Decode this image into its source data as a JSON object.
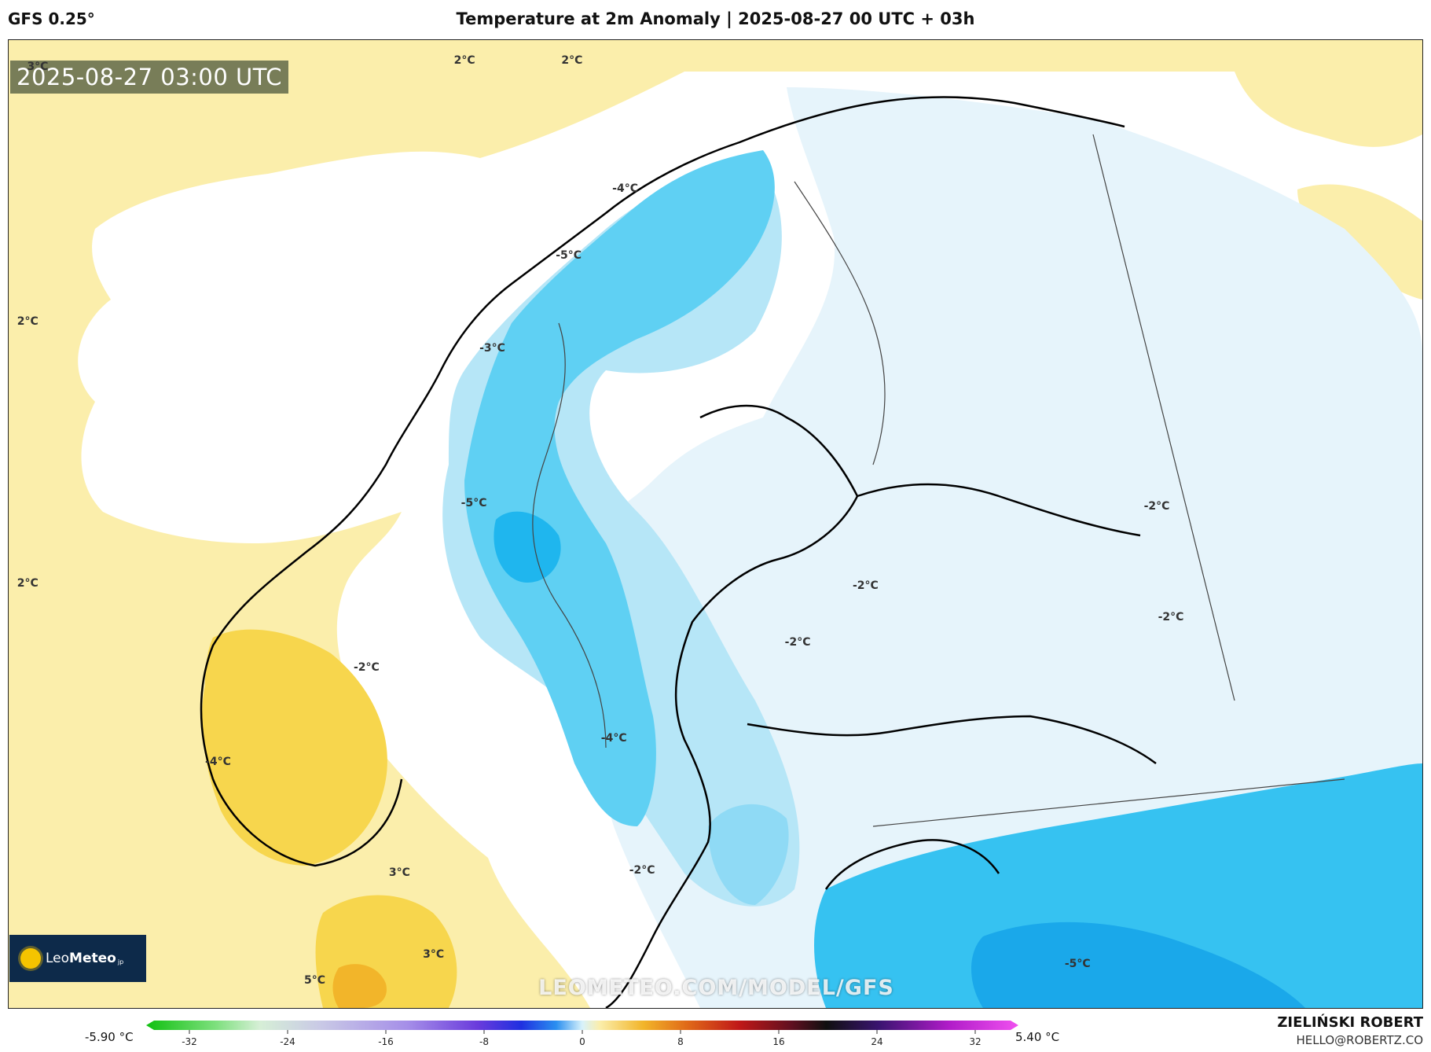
{
  "header": {
    "model": "GFS 0.25°",
    "title": "Temperature at 2m Anomaly | 2025-08-27 00 UTC + 03h"
  },
  "map": {
    "timestamp": "2025-08-27 03:00 UTC",
    "watermark": "LEOMETEO.COM/MODEL/GFS",
    "logo": {
      "leo": "Leo",
      "meteo": "Meteo",
      "suffix": "jp"
    },
    "contour_labels": [
      {
        "text": "3°C",
        "x": 1.3,
        "y": 2.1
      },
      {
        "text": "2°C",
        "x": 31.5,
        "y": 1.5
      },
      {
        "text": "2°C",
        "x": 39.1,
        "y": 1.5
      },
      {
        "text": "2°C",
        "x": 0.6,
        "y": 28.4
      },
      {
        "text": "2°C",
        "x": 0.6,
        "y": 55.5
      },
      {
        "text": "-4°C",
        "x": 42.7,
        "y": 14.7
      },
      {
        "text": "-5°C",
        "x": 38.7,
        "y": 21.6
      },
      {
        "text": "-3°C",
        "x": 33.3,
        "y": 31.2
      },
      {
        "text": "-5°C",
        "x": 32.0,
        "y": 47.2
      },
      {
        "text": "-2°C",
        "x": 24.4,
        "y": 64.2
      },
      {
        "text": "-4°C",
        "x": 13.9,
        "y": 73.9
      },
      {
        "text": "-4°C",
        "x": 41.9,
        "y": 71.5
      },
      {
        "text": "-2°C",
        "x": 43.9,
        "y": 85.1
      },
      {
        "text": "3°C",
        "x": 26.9,
        "y": 85.4
      },
      {
        "text": "3°C",
        "x": 29.3,
        "y": 93.8
      },
      {
        "text": "5°C",
        "x": 20.9,
        "y": 96.5
      },
      {
        "text": "-2°C",
        "x": 59.7,
        "y": 55.7
      },
      {
        "text": "-2°C",
        "x": 54.9,
        "y": 61.6
      },
      {
        "text": "-2°C",
        "x": 80.3,
        "y": 47.5
      },
      {
        "text": "-2°C",
        "x": 81.3,
        "y": 59.0
      },
      {
        "text": "-5°C",
        "x": 74.7,
        "y": 94.8
      }
    ]
  },
  "colorbar": {
    "min_label": "-5.90 °C",
    "max_label": "5.40 °C",
    "ticks": [
      "-32",
      "-24",
      "-16",
      "-8",
      "0",
      "8",
      "16",
      "24",
      "32"
    ]
  },
  "credits": {
    "name": "ZIELIŃSKI ROBERT",
    "email": "HELLO@ROBERTZ.CO"
  }
}
